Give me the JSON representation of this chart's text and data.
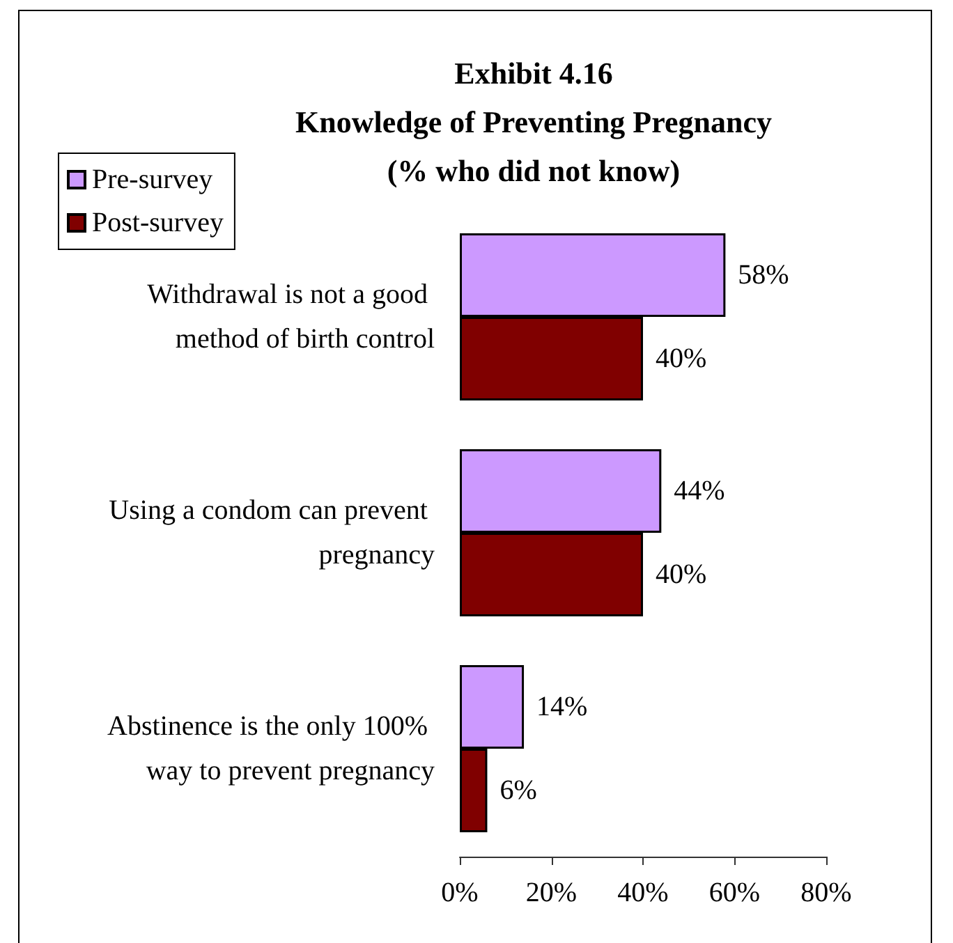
{
  "chart_data": {
    "type": "bar",
    "orientation": "horizontal",
    "title": "Exhibit 4.16\nKnowledge of Preventing Pregnancy\n(% who did not know)",
    "categories": [
      "Withdrawal is not a good method of birth control",
      "Using a condom can prevent pregnancy",
      "Abstinence is the only 100% way to prevent pregnancy"
    ],
    "series": [
      {
        "name": "Pre-survey",
        "color": "#cc99ff",
        "values": [
          58,
          44,
          14
        ],
        "value_labels": [
          "58%",
          "44%",
          "14%"
        ]
      },
      {
        "name": "Post-survey",
        "color": "#800000",
        "values": [
          40,
          40,
          6
        ],
        "value_labels": [
          "40%",
          "40%",
          "6%"
        ]
      }
    ],
    "xlim": [
      0,
      80
    ],
    "xticks": [
      {
        "value": 0,
        "label": "0%"
      },
      {
        "value": 20,
        "label": "20%"
      },
      {
        "value": 40,
        "label": "40%"
      },
      {
        "value": 60,
        "label": "60%"
      },
      {
        "value": 80,
        "label": "80%"
      }
    ],
    "grid": false,
    "legend": "top left"
  }
}
